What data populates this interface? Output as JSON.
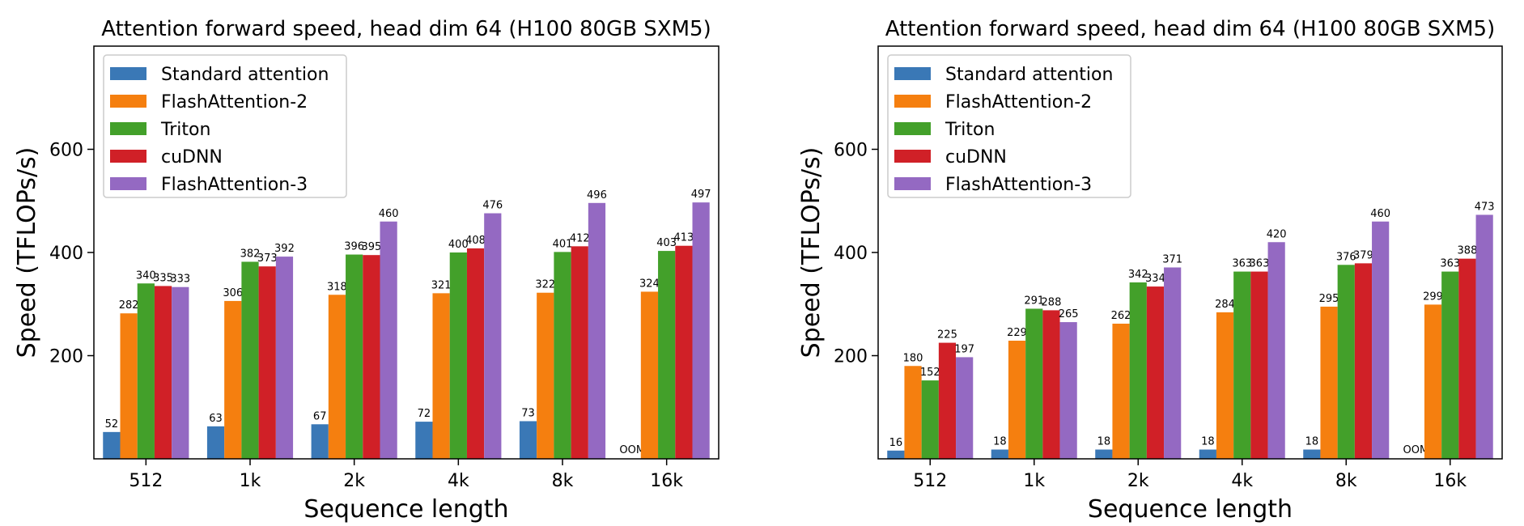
{
  "figure": {
    "ylabel": "Speed (TFLOPs/s)",
    "xlabel": "Sequence length"
  },
  "chart_data": [
    {
      "type": "bar",
      "title": "Attention forward speed, head dim 64 (H100 80GB SXM5)",
      "xlabel": "Sequence length",
      "ylabel": "Speed (TFLOPs/s)",
      "ylim": [
        0,
        800
      ],
      "yticks": [
        200,
        400,
        600
      ],
      "categories": [
        "512",
        "1k",
        "2k",
        "4k",
        "8k",
        "16k"
      ],
      "legend_position": "top-left",
      "series": [
        {
          "name": "Standard attention",
          "color": "#3a78b6",
          "values": [
            52,
            63,
            67,
            72,
            73,
            null
          ],
          "labels": [
            "52",
            "63",
            "67",
            "72",
            "73",
            "OOM"
          ]
        },
        {
          "name": "FlashAttention-2",
          "color": "#f57f0f",
          "values": [
            282,
            306,
            318,
            321,
            322,
            324
          ],
          "labels": [
            "282",
            "306",
            "318",
            "321",
            "322",
            "324"
          ]
        },
        {
          "name": "Triton",
          "color": "#43a02a",
          "values": [
            340,
            382,
            396,
            400,
            401,
            403
          ],
          "labels": [
            "340",
            "382",
            "396",
            "400",
            "401",
            "403"
          ]
        },
        {
          "name": "cuDNN",
          "color": "#d02027",
          "values": [
            335,
            373,
            395,
            408,
            412,
            413
          ],
          "labels": [
            "335",
            "373",
            "395",
            "408",
            "412",
            "413"
          ]
        },
        {
          "name": "FlashAttention-3",
          "color": "#9469c2",
          "values": [
            333,
            392,
            460,
            476,
            496,
            497
          ],
          "labels": [
            "333",
            "392",
            "460",
            "476",
            "496",
            "497"
          ]
        }
      ]
    },
    {
      "type": "bar",
      "title": "Attention forward speed, head dim 64 (H100 80GB SXM5)",
      "xlabel": "Sequence length",
      "ylabel": "Speed (TFLOPs/s)",
      "ylim": [
        0,
        800
      ],
      "yticks": [
        200,
        400,
        600
      ],
      "categories": [
        "512",
        "1k",
        "2k",
        "4k",
        "8k",
        "16k"
      ],
      "legend_position": "top-left",
      "series": [
        {
          "name": "Standard attention",
          "color": "#3a78b6",
          "values": [
            16,
            18,
            18,
            18,
            18,
            null
          ],
          "labels": [
            "16",
            "18",
            "18",
            "18",
            "18",
            "OOM"
          ]
        },
        {
          "name": "FlashAttention-2",
          "color": "#f57f0f",
          "values": [
            180,
            229,
            262,
            284,
            295,
            299
          ],
          "labels": [
            "180",
            "229",
            "262",
            "284",
            "295",
            "299"
          ]
        },
        {
          "name": "Triton",
          "color": "#43a02a",
          "values": [
            152,
            291,
            342,
            363,
            376,
            363
          ],
          "labels": [
            "152",
            "291",
            "342",
            "363",
            "376",
            "363"
          ]
        },
        {
          "name": "cuDNN",
          "color": "#d02027",
          "values": [
            225,
            288,
            334,
            363,
            379,
            388
          ],
          "labels": [
            "225",
            "288",
            "334",
            "363",
            "379",
            "388"
          ]
        },
        {
          "name": "FlashAttention-3",
          "color": "#9469c2",
          "values": [
            197,
            265,
            371,
            420,
            460,
            473
          ],
          "labels": [
            "197",
            "265",
            "371",
            "420",
            "460",
            "473"
          ]
        }
      ]
    }
  ]
}
